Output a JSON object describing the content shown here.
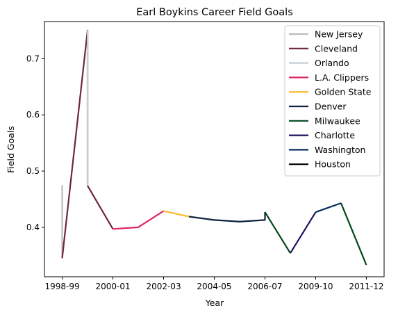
{
  "chart_data": {
    "type": "line",
    "title": "Earl Boykins Career Field Goals",
    "xlabel": "Year",
    "ylabel": "Field Goals",
    "x_ticks": [
      {
        "pos": 0,
        "label": "1998-99"
      },
      {
        "pos": 2,
        "label": "2000-01"
      },
      {
        "pos": 4,
        "label": "2002-03"
      },
      {
        "pos": 6,
        "label": "2004-05"
      },
      {
        "pos": 8,
        "label": "2006-07"
      },
      {
        "pos": 10,
        "label": "2009-10"
      },
      {
        "pos": 12,
        "label": "2011-12"
      }
    ],
    "y_ticks": [
      0.4,
      0.5,
      0.6,
      0.7
    ],
    "xlim": [
      -0.7,
      12.7
    ],
    "ylim": [
      0.312,
      0.766
    ],
    "grid": false,
    "legend_position": "top-right",
    "series": [
      {
        "name": "New Jersey",
        "color": "#bbbbbb",
        "points": [
          [
            0,
            0.475
          ],
          [
            0,
            0.345
          ]
        ]
      },
      {
        "name": "Cleveland",
        "color": "#6f263d",
        "points": [
          [
            0,
            0.345
          ],
          [
            1,
            0.75
          ],
          [
            1,
            0.474
          ],
          [
            2,
            0.397
          ]
        ]
      },
      {
        "name": "Orlando",
        "color": "#c4ced4",
        "points": [
          [
            1,
            0.75
          ],
          [
            1,
            0.474
          ]
        ]
      },
      {
        "name": "L.A. Clippers",
        "color": "#e0245e",
        "points": [
          [
            2,
            0.397
          ],
          [
            3,
            0.4
          ],
          [
            4,
            0.429
          ]
        ]
      },
      {
        "name": "Golden State",
        "color": "#fdb927",
        "points": [
          [
            4,
            0.429
          ],
          [
            5,
            0.419
          ]
        ]
      },
      {
        "name": "Denver",
        "color": "#0e2240",
        "points": [
          [
            5,
            0.419
          ],
          [
            6,
            0.413
          ],
          [
            7,
            0.41
          ],
          [
            8,
            0.413
          ],
          [
            8,
            0.427
          ]
        ]
      },
      {
        "name": "Milwaukee",
        "color": "#00471b",
        "points": [
          [
            8,
            0.427
          ],
          [
            9,
            0.354
          ]
        ]
      },
      {
        "name": "Charlotte",
        "color": "#1d1160",
        "points": [
          [
            9,
            0.354
          ],
          [
            10,
            0.427
          ]
        ]
      },
      {
        "name": "Washington",
        "color": "#002b5c",
        "points": [
          [
            10,
            0.427
          ],
          [
            11,
            0.443
          ]
        ]
      },
      {
        "name": "Milwaukee",
        "color": "#00471b",
        "points": [
          [
            11,
            0.443
          ],
          [
            12,
            0.333
          ]
        ]
      }
    ],
    "legend": [
      {
        "name": "New Jersey",
        "color": "#bbbbbb"
      },
      {
        "name": "Cleveland",
        "color": "#6f263d"
      },
      {
        "name": "Orlando",
        "color": "#c4ced4"
      },
      {
        "name": "L.A. Clippers",
        "color": "#e0245e"
      },
      {
        "name": "Golden State",
        "color": "#fdb927"
      },
      {
        "name": "Denver",
        "color": "#0e2240"
      },
      {
        "name": "Milwaukee",
        "color": "#00471b"
      },
      {
        "name": "Charlotte",
        "color": "#1d1160"
      },
      {
        "name": "Washington",
        "color": "#002b5c"
      },
      {
        "name": "Houston",
        "color": "#000000"
      }
    ]
  }
}
